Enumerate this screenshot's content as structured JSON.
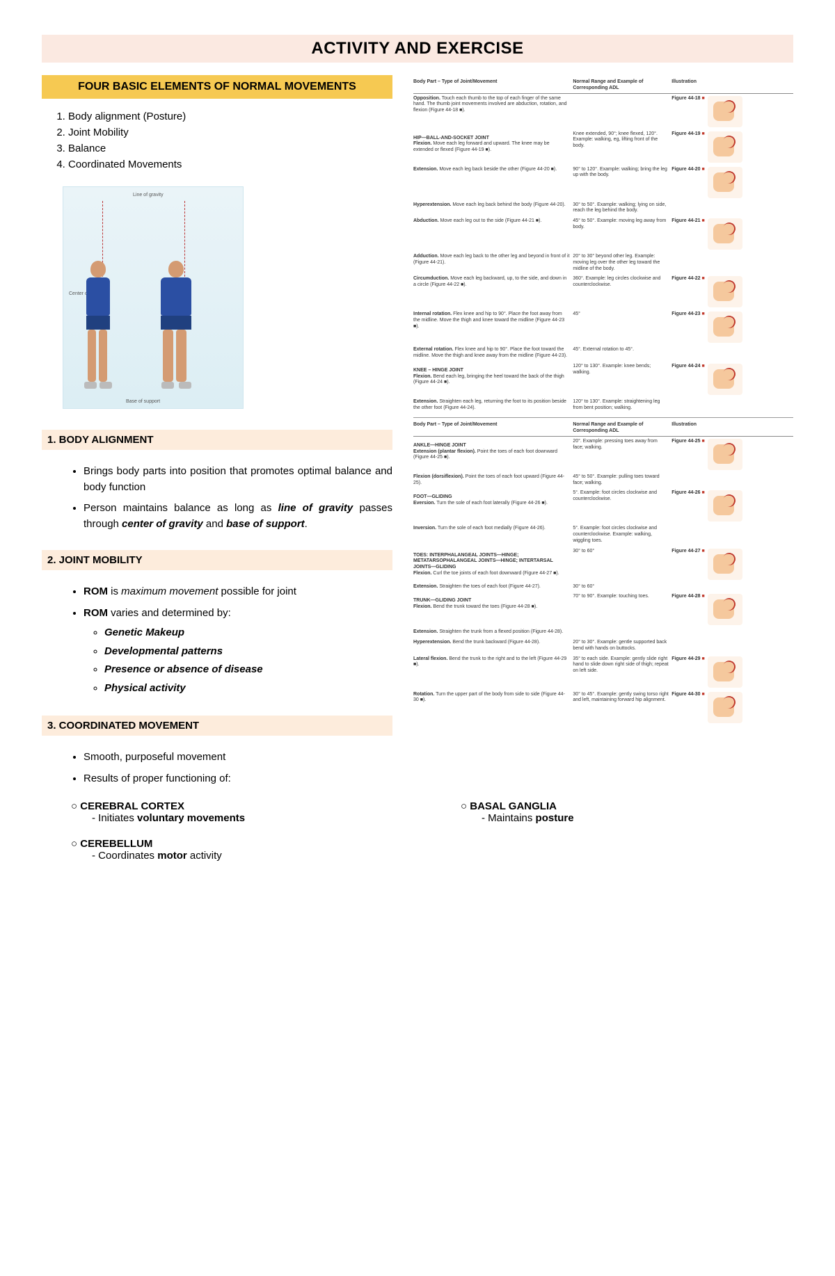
{
  "title": "ACTIVITY AND EXERCISE",
  "four_elements_header": "FOUR BASIC ELEMENTS OF NORMAL MOVEMENTS",
  "elements": [
    "Body alignment (Posture)",
    "Joint Mobility",
    "Balance",
    "Coordinated Movements"
  ],
  "posture_labels": {
    "log": "Line of gravity",
    "cog": "Center of gravity",
    "bos": "Base of support"
  },
  "sections": {
    "body_alignment": {
      "head": "1.  BODY ALIGNMENT",
      "b1": "Brings body parts into position that promotes optimal balance and body function",
      "b2_pre": "Person maintains balance as long as ",
      "b2_em1": "line of gravity",
      "b2_mid1": " passes through ",
      "b2_em2": "center of gravity",
      "b2_mid2": " and ",
      "b2_em3": "base of support",
      "b2_end": "."
    },
    "joint_mobility": {
      "head": "2.  JOINT MOBILITY",
      "b1_strong": "ROM",
      "b1_mid": " is ",
      "b1_em": "maximum movement",
      "b1_end": " possible for joint",
      "b2_strong": "ROM",
      "b2_rest": " varies and determined by:",
      "subs": [
        "Genetic Makeup",
        "Developmental patterns",
        "Presence or absence of disease",
        "Physical activity"
      ]
    },
    "coordinated": {
      "head": "3.  COORDINATED MOVEMENT",
      "b1": "Smooth, purposeful movement",
      "b2": "Results of proper functioning of:",
      "brain": {
        "cortex": {
          "name": "CEREBRAL CORTEX",
          "d_pre": "Initiates ",
          "d_strong": "voluntary movements"
        },
        "cerebellum": {
          "name": "CEREBELLUM",
          "d_pre": "Coordinates ",
          "d_strong": "motor",
          "d_post": " activity"
        },
        "basal": {
          "name": "BASAL GANGLIA",
          "d_pre": "Maintains ",
          "d_strong": "posture"
        }
      }
    }
  },
  "ref_headers": {
    "c1": "Body Part – Type of Joint/Movement",
    "c2": "Normal Range and Example of Corresponding ADL",
    "c3": "Illustration"
  },
  "ref_rows": [
    {
      "joint": "",
      "move": "Opposition.",
      "desc": "Touch each thumb to the top of each finger of the same hand. The thumb joint movements involved are abduction, rotation, and flexion (Figure 44-18 ■).",
      "range": "",
      "fig": "Figure 44-18"
    },
    {
      "joint": "HIP—BALL-AND-SOCKET JOINT",
      "move": "Flexion.",
      "desc": "Move each leg forward and upward. The knee may be extended or flexed (Figure 44-19 ■).",
      "range": "Knee extended, 90°; knee flexed, 120°. Example: walking, eg, lifting front of the body.",
      "fig": "Figure 44-19"
    },
    {
      "joint": "",
      "move": "Extension.",
      "desc": "Move each leg back beside the other (Figure 44-20 ■).",
      "range": "90° to 120°. Example: walking; bring the leg up with the body.",
      "fig": "Figure 44-20"
    },
    {
      "joint": "",
      "move": "Hyperextension.",
      "desc": "Move each leg back behind the body (Figure 44-20).",
      "range": "30° to 50°. Example: walking; lying on side, reach the leg behind the body.",
      "fig": ""
    },
    {
      "joint": "",
      "move": "Abduction.",
      "desc": "Move each leg out to the side (Figure 44-21 ■).",
      "range": "45° to 50°. Example: moving leg away from body.",
      "fig": "Figure 44-21"
    },
    {
      "joint": "",
      "move": "Adduction.",
      "desc": "Move each leg back to the other leg and beyond in front of it (Figure 44-21).",
      "range": "20° to 30° beyond other leg. Example: moving leg over the other leg toward the midline of the body.",
      "fig": ""
    },
    {
      "joint": "",
      "move": "Circumduction.",
      "desc": "Move each leg backward, up, to the side, and down in a circle (Figure 44-22 ■).",
      "range": "360°. Example: leg circles clockwise and counterclockwise.",
      "fig": "Figure 44-22"
    },
    {
      "joint": "",
      "move": "Internal rotation.",
      "desc": "Flex knee and hip to 90°. Place the foot away from the midline. Move the thigh and knee toward the midline (Figure 44-23 ■).",
      "range": "45°",
      "fig": "Figure 44-23"
    },
    {
      "joint": "",
      "move": "External rotation.",
      "desc": "Flex knee and hip to 90°. Place the foot toward the midline. Move the thigh and knee away from the midline (Figure 44-23).",
      "range": "45°. External rotation to 45°.",
      "fig": ""
    },
    {
      "joint": "KNEE – HINGE JOINT",
      "move": "Flexion.",
      "desc": "Bend each leg, bringing the heel toward the back of the thigh (Figure 44-24 ■).",
      "range": "120° to 130°. Example: knee bends; walking.",
      "fig": "Figure 44-24"
    },
    {
      "joint": "",
      "move": "Extension.",
      "desc": "Straighten each leg, returning the foot to its position beside the other foot (Figure 44-24).",
      "range": "120° to 130°. Example: straightening leg from bent position; walking.",
      "fig": ""
    }
  ],
  "ref_rows2": [
    {
      "joint": "ANKLE—HINGE JOINT",
      "move": "Extension (plantar flexion).",
      "desc": "Point the toes of each foot downward (Figure 44-25 ■).",
      "range": "20°. Example: pressing toes away from face; walking.",
      "fig": "Figure 44-25"
    },
    {
      "joint": "",
      "move": "Flexion (dorsiflexion).",
      "desc": "Point the toes of each foot upward (Figure 44-25).",
      "range": "45° to 50°. Example: pulling toes toward face; walking.",
      "fig": ""
    },
    {
      "joint": "FOOT—GLIDING",
      "move": "Eversion.",
      "desc": "Turn the sole of each foot laterally (Figure 44-26 ■).",
      "range": "5°. Example: foot circles clockwise and counterclockwise.",
      "fig": "Figure 44-26"
    },
    {
      "joint": "",
      "move": "Inversion.",
      "desc": "Turn the sole of each foot medially (Figure 44-26).",
      "range": "5°. Example: foot circles clockwise and counterclockwise. Example: walking, wiggling toes.",
      "fig": ""
    },
    {
      "joint": "TOES: INTERPHALANGEAL JOINTS—HINGE; METATARSOPHALANGEAL JOINTS—HINGE; INTERTARSAL JOINTS—GLIDING",
      "move": "Flexion.",
      "desc": "Curl the toe joints of each foot downward (Figure 44-27 ■).",
      "range": "30° to 60°",
      "fig": "Figure 44-27"
    },
    {
      "joint": "",
      "move": "Extension.",
      "desc": "Straighten the toes of each foot (Figure 44-27).",
      "range": "30° to 60°",
      "fig": ""
    },
    {
      "joint": "TRUNK—GLIDING JOINT",
      "move": "Flexion.",
      "desc": "Bend the trunk toward the toes (Figure 44-28 ■).",
      "range": "70° to 90°. Example: touching toes.",
      "fig": "Figure 44-28"
    },
    {
      "joint": "",
      "move": "Extension.",
      "desc": "Straighten the trunk from a flexed position (Figure 44-28).",
      "range": "",
      "fig": ""
    },
    {
      "joint": "",
      "move": "Hyperextension.",
      "desc": "Bend the trunk backward (Figure 44-28).",
      "range": "20° to 30°. Example: gentle supported back bend with hands on buttocks.",
      "fig": ""
    },
    {
      "joint": "",
      "move": "Lateral flexion.",
      "desc": "Bend the trunk to the right and to the left (Figure 44-29 ■).",
      "range": "35° to each side. Example: gently slide right hand to slide down right side of thigh; repeat on left side.",
      "fig": "Figure 44-29"
    },
    {
      "joint": "",
      "move": "Rotation.",
      "desc": "Turn the upper part of the body from side to side (Figure 44-30 ■).",
      "range": "30° to 45°. Example: gently swing torso right and left, maintaining forward hip alignment.",
      "fig": "Figure 44-30"
    }
  ],
  "colors": {
    "title_bg": "#fbe9e1",
    "yellow": "#f6c952",
    "section_bg": "#fdecdc",
    "skin": "#f5c89d",
    "red": "#c0392b"
  }
}
